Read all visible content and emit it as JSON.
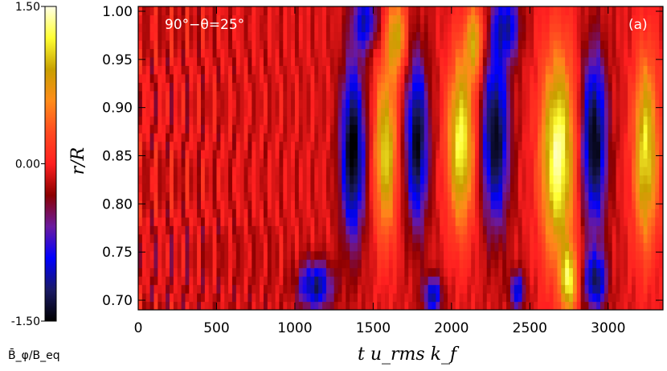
{
  "chart_data": {
    "type": "heatmap",
    "title": "",
    "panel_annotation": "90°−θ=25°",
    "panel_label": "(a)",
    "xlabel": "t u_rms k_f",
    "ylabel": "r/R",
    "xlim": [
      0,
      3350
    ],
    "ylim": [
      0.69,
      1.005
    ],
    "xticks": [
      "0",
      "500",
      "1000",
      "1500",
      "2000",
      "2500",
      "3000"
    ],
    "xtick_values": [
      0,
      500,
      1000,
      1500,
      2000,
      2500,
      3000
    ],
    "yticks": [
      "0.70",
      "0.75",
      "0.80",
      "0.85",
      "0.90",
      "0.95",
      "1.00"
    ],
    "ytick_values": [
      0.7,
      0.75,
      0.8,
      0.85,
      0.9,
      0.95,
      1.0
    ],
    "colorbar": {
      "label": "B̄_φ/B_eq",
      "min": -1.5,
      "max": 1.5,
      "ticks": [
        "1.50",
        "0.00",
        "-1.50"
      ],
      "tick_values": [
        1.5,
        0.0,
        -1.5
      ],
      "colormap": [
        "#000000",
        "#1a1a66",
        "#0000ff",
        "#6a1aa0",
        "#8b0000",
        "#ff2020",
        "#ff4a20",
        "#ff8c1a",
        "#c8a000",
        "#ffff33",
        "#ffffe6"
      ]
    },
    "background_value": -0.1,
    "features": [
      {
        "kind": "negative",
        "t": 1370,
        "r": 0.855,
        "amp": -1.45,
        "dt": 75,
        "dr": 0.09
      },
      {
        "kind": "negative",
        "t": 1780,
        "r": 0.865,
        "amp": -1.35,
        "dt": 70,
        "dr": 0.085
      },
      {
        "kind": "negative",
        "t": 2280,
        "r": 0.87,
        "amp": -1.35,
        "dt": 85,
        "dr": 0.09
      },
      {
        "kind": "negative",
        "t": 2910,
        "r": 0.865,
        "amp": -1.4,
        "dt": 80,
        "dr": 0.09
      },
      {
        "kind": "negative",
        "t": 1130,
        "r": 0.715,
        "amp": -1.1,
        "dt": 110,
        "dr": 0.025
      },
      {
        "kind": "negative",
        "t": 1880,
        "r": 0.705,
        "amp": -1.0,
        "dt": 60,
        "dr": 0.02
      },
      {
        "kind": "negative",
        "t": 2420,
        "r": 0.71,
        "amp": -0.9,
        "dt": 50,
        "dr": 0.02
      },
      {
        "kind": "negative",
        "t": 2920,
        "r": 0.72,
        "amp": -1.1,
        "dt": 70,
        "dr": 0.03
      },
      {
        "kind": "negative",
        "t": 1450,
        "r": 0.99,
        "amp": -0.9,
        "dt": 80,
        "dr": 0.03
      },
      {
        "kind": "negative",
        "t": 2350,
        "r": 0.985,
        "amp": -0.9,
        "dt": 90,
        "dr": 0.035
      },
      {
        "kind": "positive",
        "t": 1580,
        "r": 0.855,
        "amp": 1.2,
        "dt": 70,
        "dr": 0.09
      },
      {
        "kind": "positive",
        "t": 2060,
        "r": 0.865,
        "amp": 1.35,
        "dt": 85,
        "dr": 0.09
      },
      {
        "kind": "positive",
        "t": 2680,
        "r": 0.85,
        "amp": 1.5,
        "dt": 110,
        "dr": 0.11
      },
      {
        "kind": "positive",
        "t": 3240,
        "r": 0.855,
        "amp": 1.25,
        "dt": 80,
        "dr": 0.1
      },
      {
        "kind": "positive",
        "t": 1650,
        "r": 0.975,
        "amp": 1.0,
        "dt": 60,
        "dr": 0.04
      },
      {
        "kind": "positive",
        "t": 2150,
        "r": 0.97,
        "amp": 0.9,
        "dt": 60,
        "dr": 0.04
      },
      {
        "kind": "positive",
        "t": 2750,
        "r": 0.72,
        "amp": 1.2,
        "dt": 50,
        "dr": 0.035
      }
    ]
  }
}
